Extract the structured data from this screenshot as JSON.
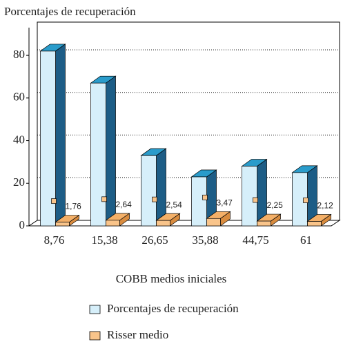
{
  "chart_data": {
    "type": "bar3d",
    "title": "Porcentajes de recuperación",
    "xlabel": "COBB medios iniciales",
    "categories": [
      "8,76",
      "15,38",
      "26,65",
      "35,88",
      "44,75",
      "61"
    ],
    "series": [
      {
        "name": "Porcentajes de recuperación",
        "color": "#d6effa",
        "values": [
          82,
          67,
          33,
          23,
          28,
          25
        ]
      },
      {
        "name": "Risser medio",
        "color": "#f9c48a",
        "values": [
          1.76,
          2.64,
          2.54,
          3.47,
          2.25,
          2.12
        ],
        "value_labels": [
          "1,76",
          "2,64",
          "2,54",
          "3,47",
          "2,25",
          "2,12"
        ]
      }
    ],
    "ylim": [
      0,
      93
    ],
    "yticks": [
      0,
      20,
      40,
      60,
      80
    ],
    "grid": true,
    "legend": "bottom"
  }
}
